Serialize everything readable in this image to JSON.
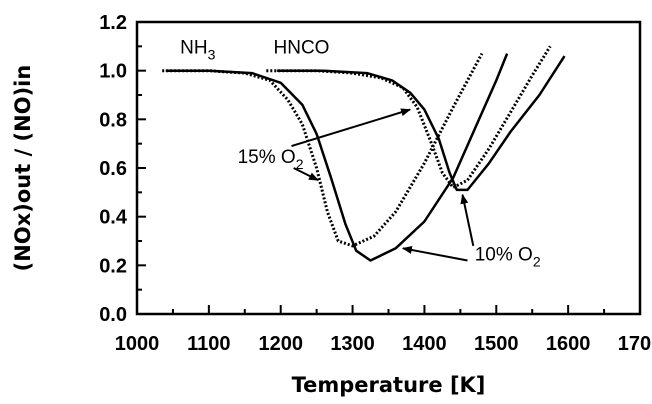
{
  "chart_data": {
    "type": "line",
    "xlabel": "Temperature [K]",
    "ylabel": "(NOx)out / (NO)in",
    "xlim": [
      1000,
      1700
    ],
    "ylim": [
      0.0,
      1.2
    ],
    "x_ticks": [
      "1000",
      "1100",
      "1200",
      "1300",
      "1400",
      "1500",
      "1600",
      "1700"
    ],
    "y_ticks": [
      "0.0",
      "0.2",
      "0.4",
      "0.6",
      "0.8",
      "1.0",
      "1.2"
    ],
    "grid": false,
    "series": [
      {
        "style": "dotted",
        "color": "#000000",
        "x": [
          1035,
          1100,
          1150,
          1185,
          1210,
          1230,
          1250,
          1265,
          1280,
          1300,
          1330,
          1360,
          1400,
          1440,
          1480
        ],
        "y": [
          1.0,
          1.0,
          0.99,
          0.96,
          0.88,
          0.78,
          0.6,
          0.42,
          0.3,
          0.28,
          0.32,
          0.42,
          0.62,
          0.85,
          1.07
        ]
      },
      {
        "style": "solid",
        "color": "#000000",
        "x": [
          1040,
          1100,
          1160,
          1200,
          1230,
          1250,
          1270,
          1290,
          1305,
          1325,
          1360,
          1400,
          1440,
          1470,
          1500,
          1515
        ],
        "y": [
          1.0,
          1.0,
          0.99,
          0.95,
          0.86,
          0.74,
          0.56,
          0.37,
          0.26,
          0.22,
          0.27,
          0.38,
          0.56,
          0.76,
          0.96,
          1.07
        ]
      },
      {
        "style": "dotted",
        "color": "#000000",
        "x": [
          1180,
          1250,
          1300,
          1340,
          1370,
          1390,
          1410,
          1425,
          1440,
          1460,
          1490,
          1520,
          1550,
          1575
        ],
        "y": [
          1.0,
          1.0,
          0.99,
          0.97,
          0.93,
          0.85,
          0.7,
          0.58,
          0.52,
          0.55,
          0.68,
          0.83,
          0.98,
          1.1
        ]
      },
      {
        "style": "solid",
        "color": "#000000",
        "x": [
          1195,
          1260,
          1320,
          1355,
          1380,
          1400,
          1420,
          1435,
          1445,
          1460,
          1490,
          1520,
          1560,
          1595
        ],
        "y": [
          1.0,
          1.0,
          0.99,
          0.96,
          0.91,
          0.84,
          0.72,
          0.58,
          0.51,
          0.51,
          0.62,
          0.75,
          0.9,
          1.06
        ]
      }
    ],
    "annotations": [
      {
        "name": "nh3",
        "text": "NH",
        "sub": "3",
        "x": 1060,
        "y": 1.07
      },
      {
        "name": "hnco",
        "text": "HNCO",
        "sub": "",
        "x": 1190,
        "y": 1.07
      },
      {
        "name": "o2-15",
        "text": "15% O",
        "sub": "2",
        "x": 1140,
        "y": 0.62
      },
      {
        "name": "o2-10",
        "text": "10% O",
        "sub": "2",
        "x": 1470,
        "y": 0.22
      }
    ],
    "arrows": [
      {
        "name": "arrow-15-to-hnco",
        "from": [
          1215,
          0.69
        ],
        "to": [
          1380,
          0.84
        ]
      },
      {
        "name": "arrow-15-to-nh3",
        "from": [
          1218,
          0.6
        ],
        "to": [
          1252,
          0.55
        ]
      },
      {
        "name": "arrow-10-to-hnco",
        "from": [
          1468,
          0.28
        ],
        "to": [
          1453,
          0.49
        ]
      },
      {
        "name": "arrow-10-to-nh3",
        "from": [
          1460,
          0.22
        ],
        "to": [
          1370,
          0.27
        ]
      }
    ]
  }
}
